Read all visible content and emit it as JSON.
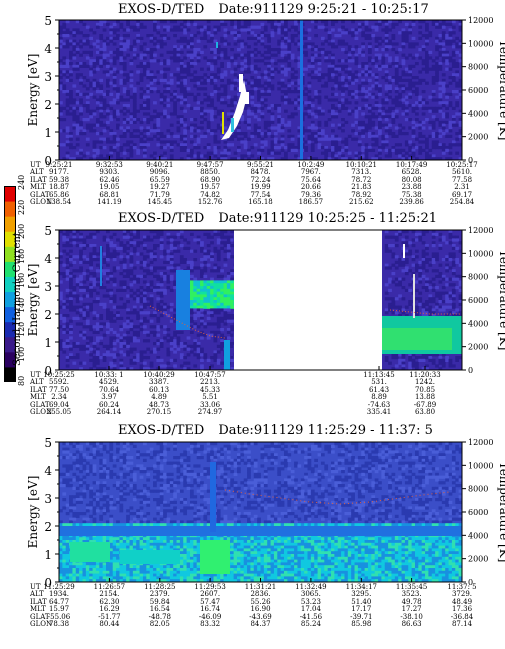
{
  "colorbar": {
    "label": "Second Harmonic Current",
    "ticks": [
      "80",
      "100",
      "120",
      "140",
      "160",
      "180",
      "200",
      "220",
      "240"
    ],
    "colors": [
      "#000000",
      "#2a0060",
      "#3a1a8a",
      "#1a2ab0",
      "#1060e0",
      "#10a0e0",
      "#10d0c0",
      "#20e070",
      "#90e020",
      "#e0e000",
      "#f0a000",
      "#f06000",
      "#e00000"
    ]
  },
  "panels": [
    {
      "instrument": "EXOS-D/TED",
      "date_range": "Date:911129  9:25:21 - 10:25:17",
      "ylabel_left": "Energy [eV]",
      "ylabel_right": "Temperature [K]",
      "ephemeris": {
        "labels": [
          "UT",
          "ALT",
          "ILAT",
          "MLT",
          "GLAT",
          "GLON"
        ],
        "columns": [
          [
            "9:25:21",
            "9177.",
            "59.38",
            "18.87",
            "65.86",
            "138.54"
          ],
          [
            "9:32:53",
            "9303.",
            "62.46",
            "19.05",
            "68.81",
            "141.19"
          ],
          [
            "9:40:21",
            "9096.",
            "65.59",
            "19.27",
            "71.79",
            "145.45"
          ],
          [
            "9:47:57",
            "8850.",
            "68.90",
            "19.57",
            "74.82",
            "152.76"
          ],
          [
            "9:55:21",
            "8478.",
            "72.24",
            "19.99",
            "77.54",
            "165.18"
          ],
          [
            "10:2:49",
            "7967.",
            "75.64",
            "20.66",
            "79.36",
            "186.57"
          ],
          [
            "10:10:21",
            "7313.",
            "78.72",
            "21.83",
            "78.92",
            "215.62"
          ],
          [
            "10:17:49",
            "6528.",
            "80.08",
            "23.88",
            "75.38",
            "239.86"
          ],
          [
            "10:25:17",
            "5610.",
            "77.58",
            "2.31",
            "69.17",
            "254.84"
          ]
        ]
      }
    },
    {
      "instrument": "EXOS-D/TED",
      "date_range": "Date:911129  10:25:25 - 11:25:21",
      "ylabel_left": "Energy [eV]",
      "ylabel_right": "Temperature [K]",
      "ephemeris": {
        "labels": [
          "UT",
          "ALT",
          "ILAT",
          "MLT",
          "GLAT",
          "GLON"
        ],
        "columns": [
          [
            "10:25:25",
            "5592.",
            "77.50",
            "2.34",
            "69.04",
            "255.05"
          ],
          [
            "10:33: 1",
            "4529.",
            "70.64",
            "3.97",
            "60.24",
            "264.14"
          ],
          [
            "10:40:29",
            "3387.",
            "60.13",
            "4.89",
            "48.73",
            "270.15"
          ],
          [
            "10:47:57",
            "2213.",
            "45.33",
            "5.51",
            "33.06",
            "274.97"
          ],
          [
            "11:13:45",
            "531.",
            "61.43",
            "8.89",
            "-74.63",
            "335.41"
          ],
          [
            "11:20:33",
            "1242.",
            "70.85",
            "13.88",
            "-67.89",
            "63.80"
          ]
        ]
      }
    },
    {
      "instrument": "EXOS-D/TED",
      "date_range": "Date:911129  11:25:29 - 11:37: 5",
      "ylabel_left": "Energy [eV]",
      "ylabel_right": "Temperature [K]",
      "ephemeris": {
        "labels": [
          "UT",
          "ALT",
          "ILAT",
          "MLT",
          "GLAT",
          "GLON"
        ],
        "columns": [
          [
            "11:25:29",
            "1934.",
            "64.77",
            "15.97",
            "-55.06",
            "78.38"
          ],
          [
            "11:26:57",
            "2154.",
            "62.30",
            "16.29",
            "-51.77",
            "80.44"
          ],
          [
            "11:28:25",
            "2379.",
            "59.84",
            "16.54",
            "-48.78",
            "82.05"
          ],
          [
            "11:29:53",
            "2607.",
            "57.47",
            "16.74",
            "-46.09",
            "83.32"
          ],
          [
            "11:31:21",
            "2836.",
            "55.26",
            "16.90",
            "-43.69",
            "84.37"
          ],
          [
            "11:32:49",
            "3065.",
            "53.23",
            "17.04",
            "-41.56",
            "85.24"
          ],
          [
            "11:34:17",
            "3295.",
            "51.40",
            "17.17",
            "-39.71",
            "85.98"
          ],
          [
            "11:35:45",
            "3523.",
            "49.78",
            "17.27",
            "-38.10",
            "86.63"
          ],
          [
            "11:37: 5",
            "3729.",
            "48.49",
            "17.36",
            "-36.84",
            "87.14"
          ]
        ]
      }
    }
  ],
  "chart_data": [
    {
      "type": "heatmap",
      "title": "EXOS-D/TED  Date:911129  9:25:21 - 10:25:17",
      "xlabel": "",
      "ylabel": "Energy [eV]",
      "y2label": "Temperature [K]",
      "ylim": [
        0,
        5
      ],
      "y2lim": [
        0,
        12000
      ],
      "yticks": [
        "0",
        "1",
        "2",
        "3",
        "4",
        "5"
      ],
      "y2ticks": [
        "0",
        "2000",
        "4000",
        "6000",
        "8000",
        "10000",
        "12000"
      ],
      "xticks": [
        "9:25:21",
        "9:32:53",
        "9:40:21",
        "9:47:57",
        "9:55:21",
        "10:2:49",
        "10:10:21",
        "10:17:49",
        "10:25:17"
      ]
    },
    {
      "type": "heatmap",
      "title": "EXOS-D/TED  Date:911129  10:25:25 - 11:25:21",
      "xlabel": "",
      "ylabel": "Energy [eV]",
      "y2label": "Temperature [K]",
      "ylim": [
        0,
        5
      ],
      "y2lim": [
        0,
        12000
      ],
      "yticks": [
        "0",
        "1",
        "2",
        "3",
        "4",
        "5"
      ],
      "y2ticks": [
        "0",
        "2000",
        "4000",
        "6000",
        "8000",
        "10000",
        "12000"
      ],
      "xticks": [
        "10:25:25",
        "10:33: 1",
        "10:40:29",
        "10:47:57",
        "11:13:45",
        "11:20:33"
      ]
    },
    {
      "type": "heatmap",
      "title": "EXOS-D/TED  Date:911129  11:25:29 - 11:37: 5",
      "xlabel": "",
      "ylabel": "Energy [eV]",
      "y2label": "Temperature [K]",
      "ylim": [
        0,
        5
      ],
      "y2lim": [
        0,
        12000
      ],
      "yticks": [
        "0",
        "1",
        "2",
        "3",
        "4",
        "5"
      ],
      "y2ticks": [
        "0",
        "2000",
        "4000",
        "6000",
        "8000",
        "10000",
        "12000"
      ],
      "xticks": [
        "11:25:29",
        "11:26:57",
        "11:28:25",
        "11:29:53",
        "11:31:21",
        "11:32:49",
        "11:34:17",
        "11:35:45",
        "11:37: 5"
      ]
    }
  ]
}
